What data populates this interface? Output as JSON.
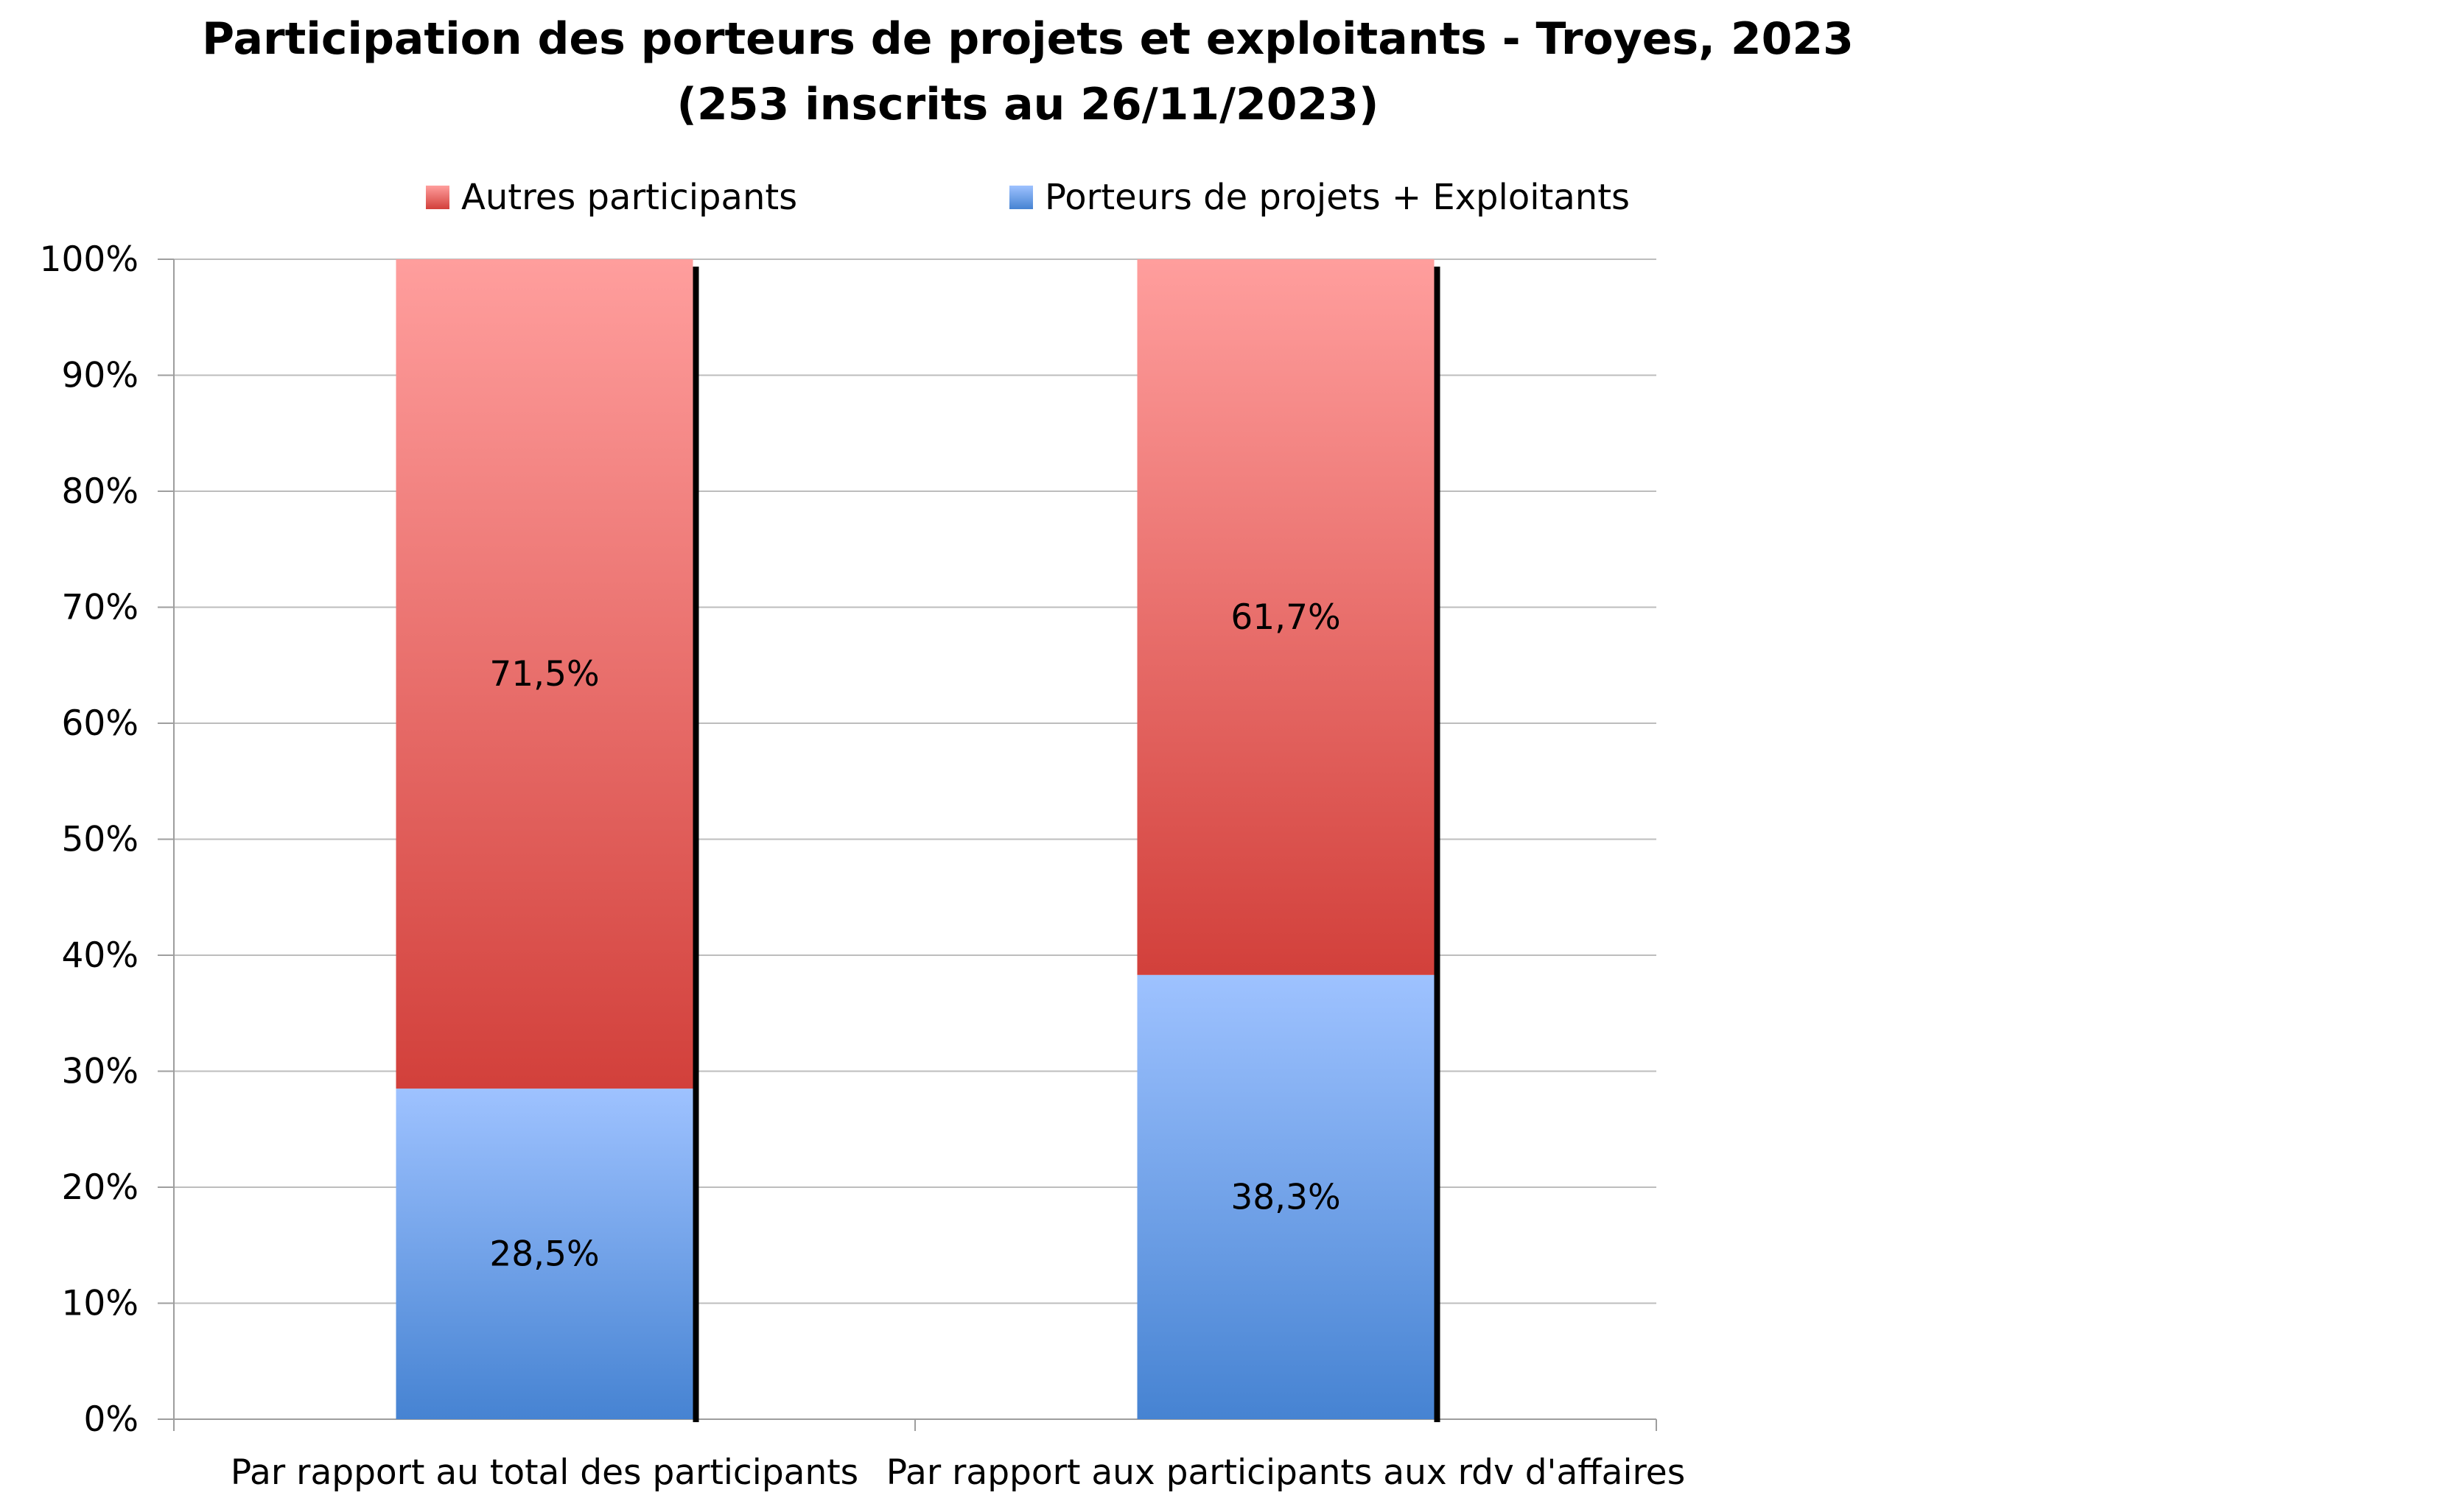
{
  "chart_data": {
    "type": "bar",
    "stacked": true,
    "title": "Participation des porteurs de projets et exploitants - Troyes, 2023",
    "subtitle": "(253 inscrits au 26/11/2023)",
    "categories": [
      "Par rapport au total des participants",
      "Par rapport aux participants aux rdv d'affaires"
    ],
    "series": [
      {
        "name": "Porteurs de projets + Exploitants",
        "values": [
          28.5,
          38.3
        ],
        "labels": [
          "28,5%",
          "38,3%"
        ],
        "color_top": "#9ec2ff",
        "color_bottom": "#4683d2"
      },
      {
        "name": "Autres participants",
        "values": [
          71.5,
          61.7
        ],
        "labels": [
          "71,5%",
          "61,7%"
        ],
        "color_top": "#ff9e9d",
        "color_bottom": "#d2403b"
      }
    ],
    "legend_order": [
      "Autres participants",
      "Porteurs de projets + Exploitants"
    ],
    "legend_position": "top",
    "ylim": [
      0,
      100
    ],
    "yticks": [
      "0%",
      "10%",
      "20%",
      "30%",
      "40%",
      "50%",
      "60%",
      "70%",
      "80%",
      "90%",
      "100%"
    ],
    "grid": true,
    "xlabel": "",
    "ylabel": ""
  }
}
